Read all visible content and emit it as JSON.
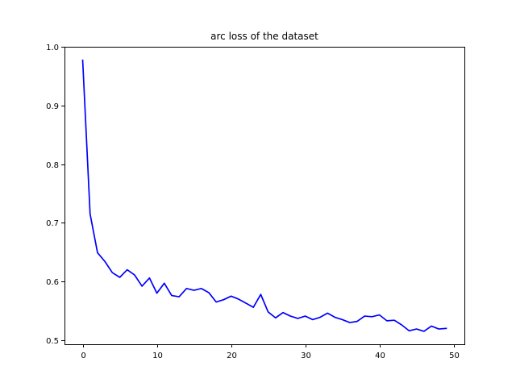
{
  "chart_data": {
    "type": "line",
    "title": "arc loss of the dataset",
    "xlabel": "",
    "ylabel": "",
    "xlim": [
      -2.45,
      51.45
    ],
    "ylim": [
      0.493,
      1.0
    ],
    "xticks": [
      0,
      10,
      20,
      30,
      40,
      50
    ],
    "yticks": [
      0.5,
      0.6,
      0.7,
      0.8,
      0.9,
      1.0
    ],
    "xtick_labels": [
      "0",
      "10",
      "20",
      "30",
      "40",
      "50"
    ],
    "ytick_labels": [
      "0.5",
      "0.6",
      "0.7",
      "0.8",
      "0.9",
      "1.0"
    ],
    "grid": false,
    "series": [
      {
        "name": "",
        "color": "#0000ff",
        "x": [
          0,
          1,
          2,
          3,
          4,
          5,
          6,
          7,
          8,
          9,
          10,
          11,
          12,
          13,
          14,
          15,
          16,
          17,
          18,
          19,
          20,
          21,
          22,
          23,
          24,
          25,
          26,
          27,
          28,
          29,
          30,
          31,
          32,
          33,
          34,
          35,
          36,
          37,
          38,
          39,
          40,
          41,
          42,
          43,
          44,
          45,
          46,
          47,
          48,
          49
        ],
        "values": [
          0.977,
          0.715,
          0.649,
          0.634,
          0.615,
          0.607,
          0.62,
          0.611,
          0.592,
          0.606,
          0.58,
          0.597,
          0.576,
          0.574,
          0.588,
          0.585,
          0.588,
          0.581,
          0.565,
          0.569,
          0.575,
          0.57,
          0.563,
          0.556,
          0.578,
          0.548,
          0.538,
          0.547,
          0.541,
          0.537,
          0.541,
          0.535,
          0.539,
          0.546,
          0.539,
          0.535,
          0.53,
          0.532,
          0.541,
          0.54,
          0.543,
          0.533,
          0.534,
          0.526,
          0.516,
          0.519,
          0.515,
          0.524,
          0.519,
          0.52
        ]
      }
    ]
  }
}
